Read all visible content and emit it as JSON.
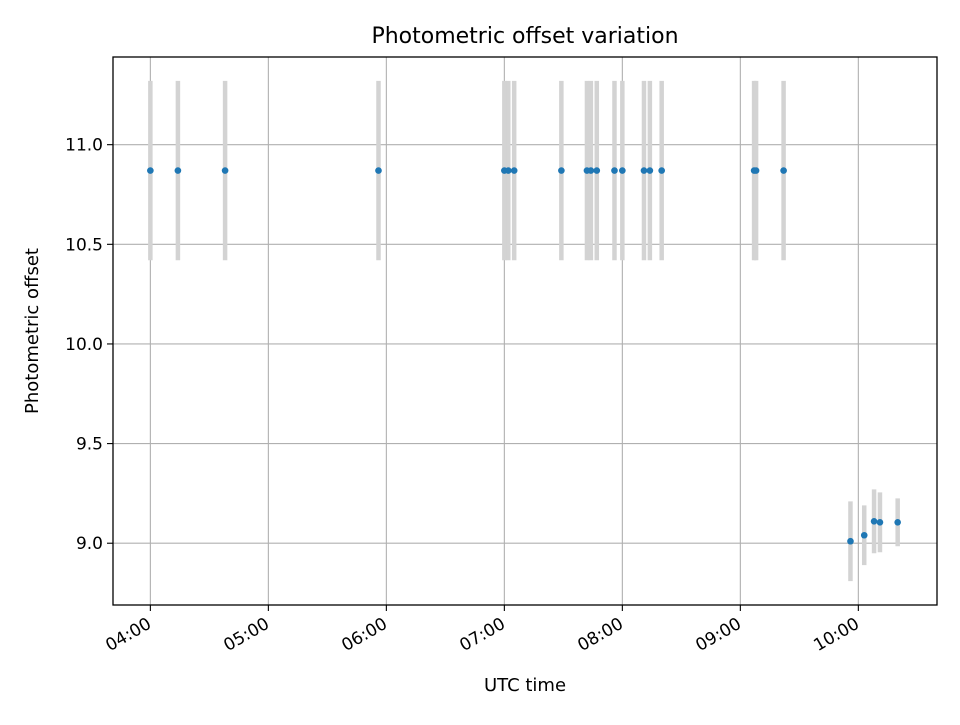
{
  "chart_data": {
    "type": "scatter",
    "title": "Photometric offset variation",
    "xlabel": "UTC time",
    "ylabel": "Photometric offset",
    "x_tick_labels": [
      "04:00",
      "05:00",
      "06:00",
      "07:00",
      "08:00",
      "09:00",
      "10:00"
    ],
    "y_tick_labels": [
      "9.0",
      "9.5",
      "10.0",
      "10.5",
      "11.0"
    ],
    "y_ticks": [
      9.0,
      9.5,
      10.0,
      10.5,
      11.0
    ],
    "xlim": [
      "03:41",
      "10:40"
    ],
    "ylim": [
      8.69,
      11.44
    ],
    "grid": true,
    "point_color": "#1f77b4",
    "errorbar_color": "#d3d3d3",
    "points": [
      {
        "x": "04:00",
        "y": 10.87,
        "err": 0.45
      },
      {
        "x": "04:14",
        "y": 10.87,
        "err": 0.45
      },
      {
        "x": "04:38",
        "y": 10.87,
        "err": 0.45
      },
      {
        "x": "05:56",
        "y": 10.87,
        "err": 0.45
      },
      {
        "x": "07:00",
        "y": 10.87,
        "err": 0.45
      },
      {
        "x": "07:02",
        "y": 10.87,
        "err": 0.45
      },
      {
        "x": "07:05",
        "y": 10.87,
        "err": 0.45
      },
      {
        "x": "07:29",
        "y": 10.87,
        "err": 0.45
      },
      {
        "x": "07:42",
        "y": 10.87,
        "err": 0.45
      },
      {
        "x": "07:44",
        "y": 10.87,
        "err": 0.45
      },
      {
        "x": "07:47",
        "y": 10.87,
        "err": 0.45
      },
      {
        "x": "07:56",
        "y": 10.87,
        "err": 0.45
      },
      {
        "x": "08:00",
        "y": 10.87,
        "err": 0.45
      },
      {
        "x": "08:11",
        "y": 10.87,
        "err": 0.45
      },
      {
        "x": "08:14",
        "y": 10.87,
        "err": 0.45
      },
      {
        "x": "08:20",
        "y": 10.87,
        "err": 0.45
      },
      {
        "x": "09:07",
        "y": 10.87,
        "err": 0.45
      },
      {
        "x": "09:08",
        "y": 10.87,
        "err": 0.45
      },
      {
        "x": "09:22",
        "y": 10.87,
        "err": 0.45
      },
      {
        "x": "09:56",
        "y": 9.01,
        "err": 0.2
      },
      {
        "x": "10:03",
        "y": 9.04,
        "err": 0.15
      },
      {
        "x": "10:08",
        "y": 9.11,
        "err": 0.16
      },
      {
        "x": "10:11",
        "y": 9.105,
        "err": 0.15
      },
      {
        "x": "10:20",
        "y": 9.105,
        "err": 0.12
      }
    ]
  }
}
